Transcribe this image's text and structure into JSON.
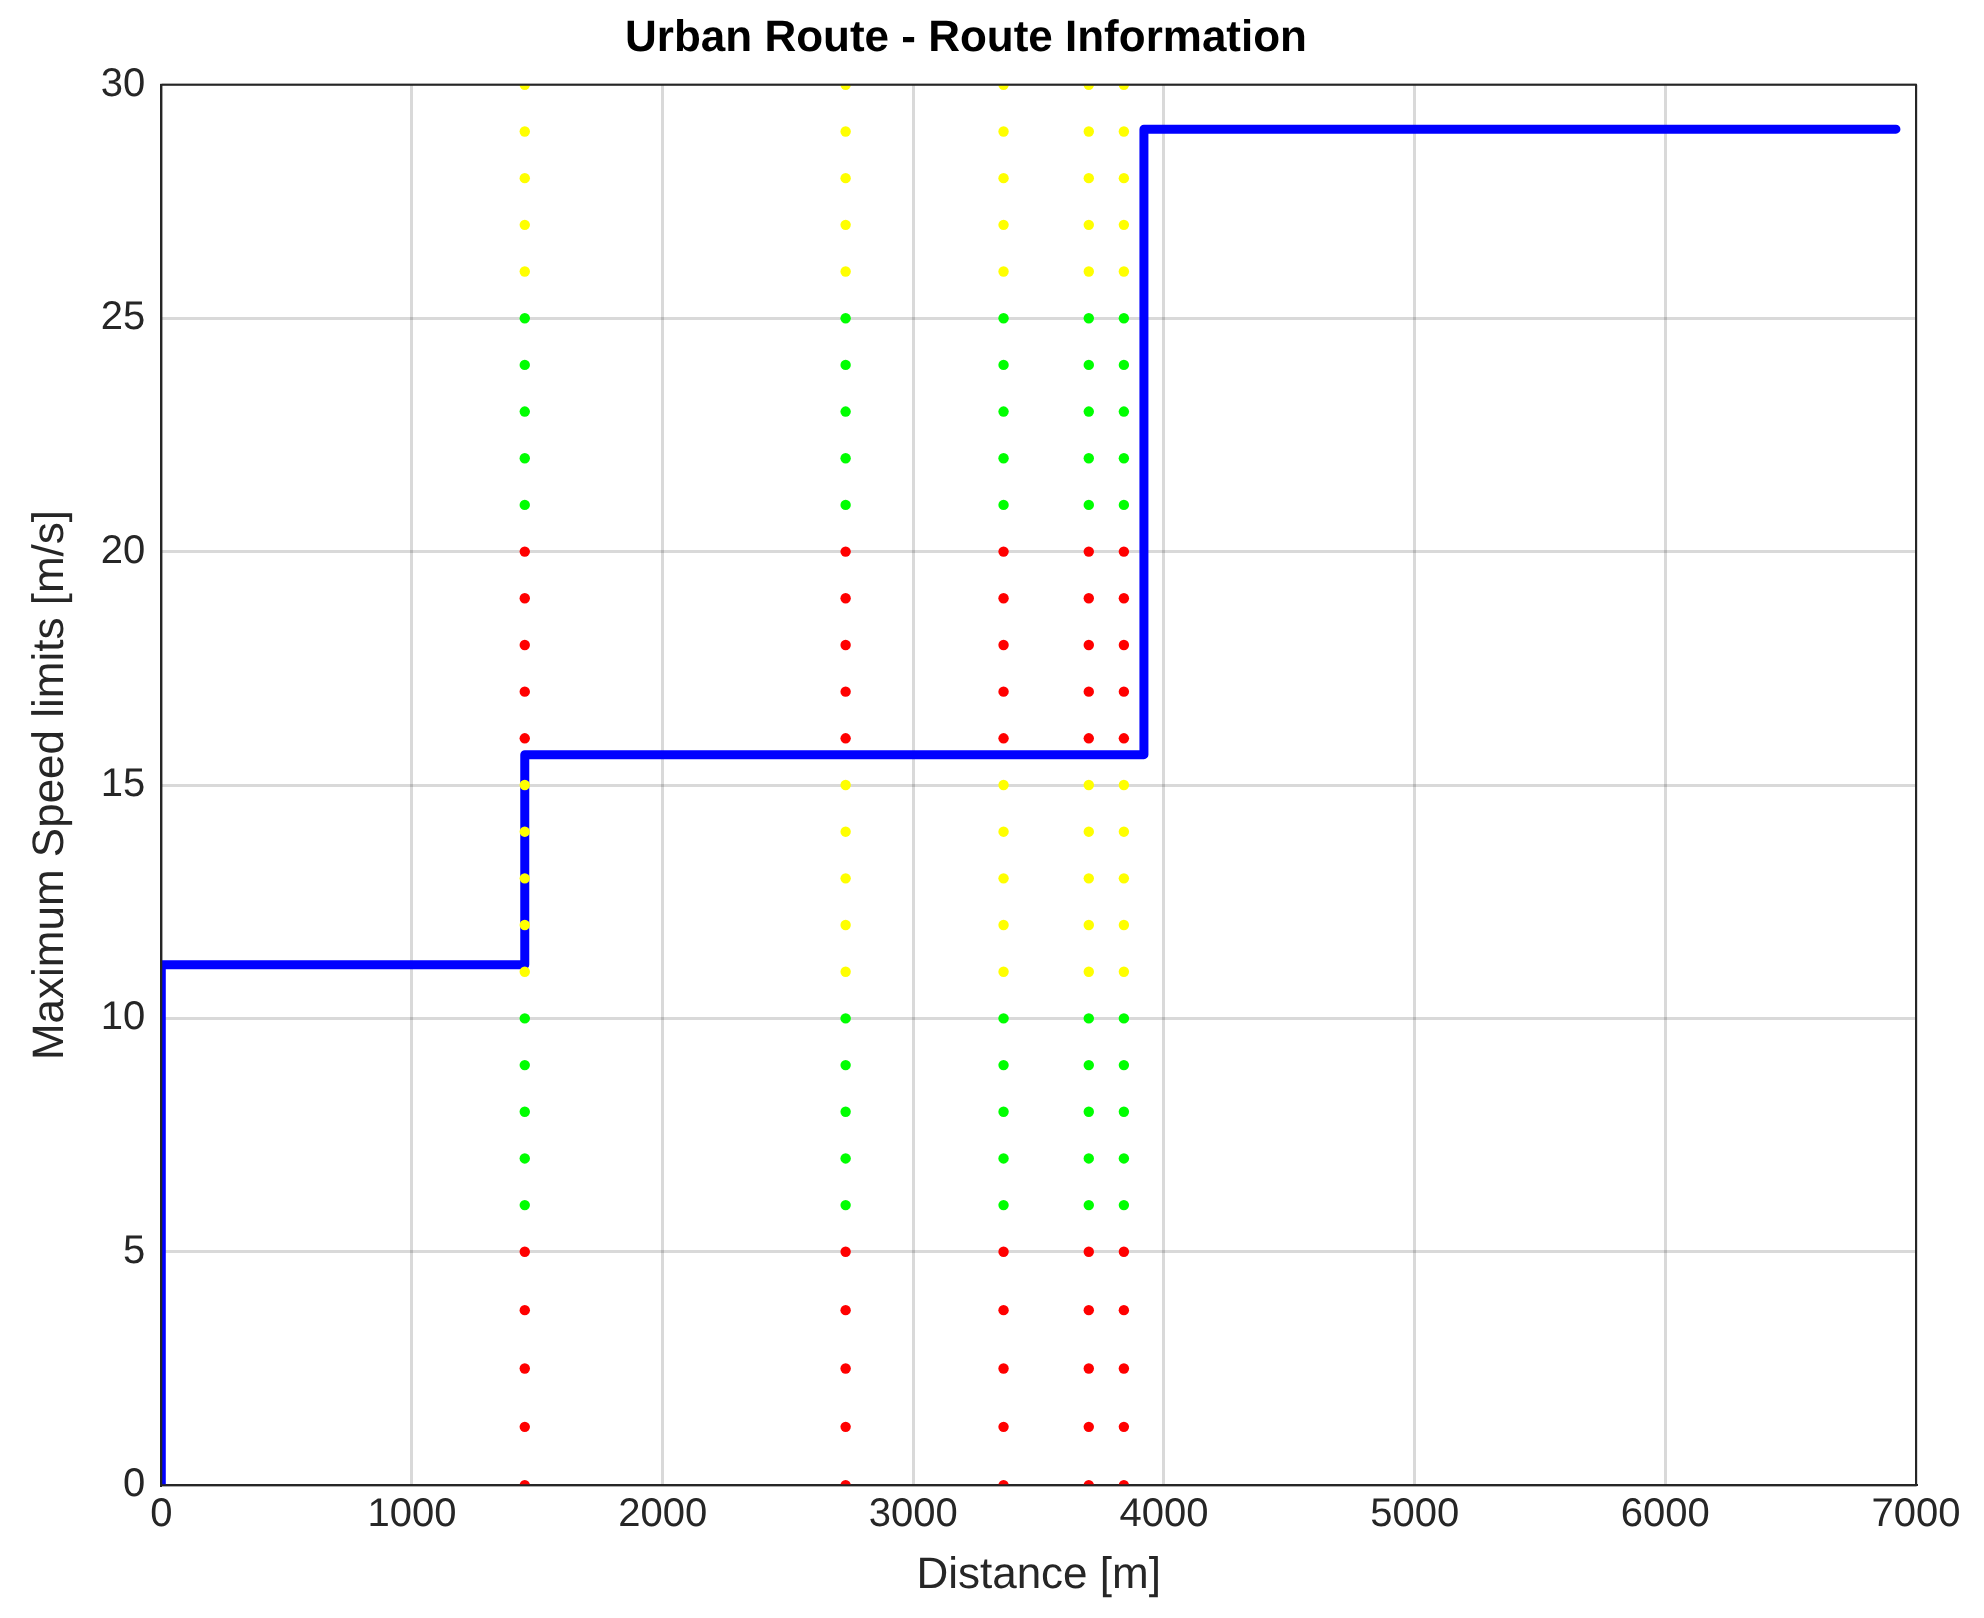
{
  "chart_data": {
    "type": "line",
    "title": "Urban Route - Route Information",
    "xlabel": "Distance [m]",
    "ylabel": "Maximum Speed limits [m/s]",
    "xlim": [
      0,
      7000
    ],
    "xticks": [
      0,
      1000,
      2000,
      3000,
      4000,
      5000,
      6000,
      7000
    ],
    "ylim": [
      0,
      30
    ],
    "yticks": [
      0,
      5,
      10,
      15,
      20,
      25,
      30
    ],
    "grid": true,
    "series": [
      {
        "color": "#0000ff",
        "marker": "none",
        "x": [
          0,
          0,
          1450,
          1450,
          3920,
          3920,
          6920
        ],
        "values": [
          0,
          11.15,
          11.15,
          15.65,
          15.65,
          29.05,
          29.05
        ]
      },
      {
        "type": "scatter",
        "color": "#ff0000",
        "marker": "circle",
        "x": [
          1450,
          1450,
          1450,
          1450,
          1450,
          1450,
          1450,
          1450,
          1450,
          1450,
          2730,
          2730,
          2730,
          2730,
          2730,
          2730,
          2730,
          2730,
          2730,
          2730,
          3360,
          3360,
          3360,
          3360,
          3360,
          3360,
          3360,
          3360,
          3360,
          3360,
          3700,
          3700,
          3700,
          3700,
          3700,
          3700,
          3700,
          3700,
          3700,
          3700,
          3840,
          3840,
          3840,
          3840,
          3840,
          3840,
          3840,
          3840,
          3840,
          3840
        ],
        "values": [
          0,
          1.25,
          2.5,
          3.75,
          5,
          16,
          17,
          18,
          19,
          20,
          0,
          1.25,
          2.5,
          3.75,
          5,
          16,
          17,
          18,
          19,
          20,
          0,
          1.25,
          2.5,
          3.75,
          5,
          16,
          17,
          18,
          19,
          20,
          0,
          1.25,
          2.5,
          3.75,
          5,
          16,
          17,
          18,
          19,
          20,
          0,
          1.25,
          2.5,
          3.75,
          5,
          16,
          17,
          18,
          19,
          20
        ]
      },
      {
        "type": "scatter",
        "color": "#00ff00",
        "marker": "circle",
        "x": [
          1450,
          1450,
          1450,
          1450,
          1450,
          1450,
          1450,
          1450,
          1450,
          1450,
          2730,
          2730,
          2730,
          2730,
          2730,
          2730,
          2730,
          2730,
          2730,
          2730,
          3360,
          3360,
          3360,
          3360,
          3360,
          3360,
          3360,
          3360,
          3360,
          3360,
          3700,
          3700,
          3700,
          3700,
          3700,
          3700,
          3700,
          3700,
          3700,
          3700,
          3840,
          3840,
          3840,
          3840,
          3840,
          3840,
          3840,
          3840,
          3840,
          3840
        ],
        "values": [
          6,
          7,
          8,
          9,
          10,
          21,
          22,
          23,
          24,
          25,
          6,
          7,
          8,
          9,
          10,
          21,
          22,
          23,
          24,
          25,
          6,
          7,
          8,
          9,
          10,
          21,
          22,
          23,
          24,
          25,
          6,
          7,
          8,
          9,
          10,
          21,
          22,
          23,
          24,
          25,
          6,
          7,
          8,
          9,
          10,
          21,
          22,
          23,
          24,
          25
        ]
      },
      {
        "type": "scatter",
        "color": "#ffff00",
        "marker": "circle",
        "x": [
          1450,
          1450,
          1450,
          1450,
          1450,
          1450,
          1450,
          1450,
          1450,
          1450,
          2730,
          2730,
          2730,
          2730,
          2730,
          2730,
          2730,
          2730,
          2730,
          2730,
          3360,
          3360,
          3360,
          3360,
          3360,
          3360,
          3360,
          3360,
          3360,
          3360,
          3700,
          3700,
          3700,
          3700,
          3700,
          3700,
          3700,
          3700,
          3700,
          3700,
          3840,
          3840,
          3840,
          3840,
          3840,
          3840,
          3840,
          3840,
          3840,
          3840
        ],
        "values": [
          11,
          12,
          13,
          14,
          15,
          26,
          27,
          28,
          29,
          30,
          11,
          12,
          13,
          14,
          15,
          26,
          27,
          28,
          29,
          30,
          11,
          12,
          13,
          14,
          15,
          26,
          27,
          28,
          29,
          30,
          11,
          12,
          13,
          14,
          15,
          26,
          27,
          28,
          29,
          30,
          11,
          12,
          13,
          14,
          15,
          26,
          27,
          28,
          29,
          30
        ]
      }
    ]
  }
}
